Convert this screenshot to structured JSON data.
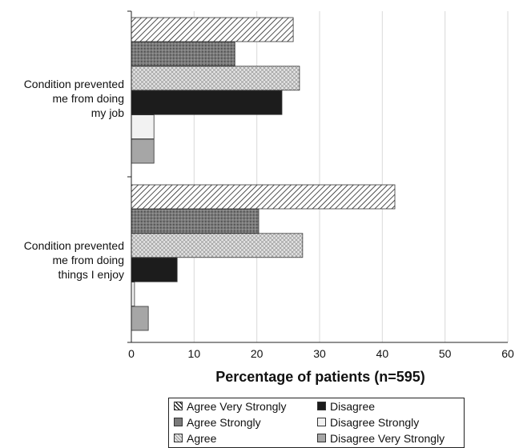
{
  "chart_data": {
    "type": "bar",
    "orientation": "horizontal",
    "categories": [
      [
        "Condition prevented",
        "me from doing",
        "my job"
      ],
      [
        "Condition prevented",
        "me from doing",
        "things I enjoy"
      ]
    ],
    "series": [
      {
        "name": "Agree Very Strongly",
        "values": [
          25.8,
          42.0
        ],
        "fill": "hatch-diagonal"
      },
      {
        "name": "Agree Strongly",
        "values": [
          16.5,
          20.3
        ],
        "fill": "dark-gray-dots"
      },
      {
        "name": "Agree",
        "values": [
          26.8,
          27.3
        ],
        "fill": "light-crosshatch"
      },
      {
        "name": "Disagree",
        "values": [
          24.0,
          7.3
        ],
        "fill": "#1c1c1c"
      },
      {
        "name": "Disagree Strongly",
        "values": [
          3.6,
          0.5
        ],
        "fill": "#f2f2f2"
      },
      {
        "name": "Disagree Very Strongly",
        "values": [
          3.6,
          2.7
        ],
        "fill": "#a6a6a6"
      }
    ],
    "xlabel": "Percentage of patients (n=595)",
    "xlim": [
      0,
      60
    ],
    "xticks": [
      0,
      10,
      20,
      30,
      40,
      50,
      60
    ],
    "grid": "vertical",
    "legend": "bottom",
    "legend_order": [
      0,
      3,
      1,
      4,
      2,
      5
    ]
  }
}
